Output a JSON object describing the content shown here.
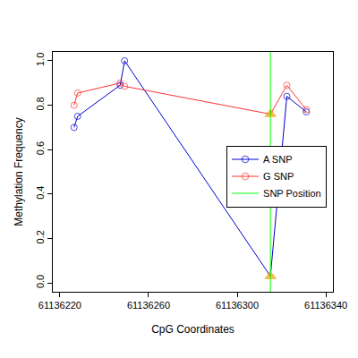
{
  "chart_data": {
    "type": "line",
    "x_label": "CpG Coordinates",
    "y_label": "Methylation Frequency",
    "xlim": [
      61136216.8,
      61136343.2
    ],
    "xticks": [
      61136220,
      61136260,
      61136300,
      61136340
    ],
    "ylim": [
      -0.04,
      1.04
    ],
    "yticks": [
      {
        "value": 0,
        "label": "0.0"
      },
      {
        "value": 0.2,
        "label": "0.2"
      },
      {
        "value": 0.4,
        "label": "0.4"
      },
      {
        "value": 0.6,
        "label": "0.6"
      },
      {
        "value": 0.8,
        "label": "0.8"
      },
      {
        "value": 1.0,
        "label": "1.0"
      }
    ],
    "grid": false,
    "legend": "right",
    "snp_position": 61136315,
    "snp_label": "SNP Position",
    "snp_color": "#00ff00",
    "series": [
      {
        "name": "A SNP",
        "color": "#0000cd",
        "marker": "circle",
        "x": [
          61136226.4,
          61136228,
          61136247.2,
          61136249.2,
          61136315,
          61136322.4,
          61136331.2
        ],
        "values": [
          0.7,
          0.75,
          0.89,
          1.0,
          0.03,
          0.84,
          0.77
        ]
      },
      {
        "name": "G SNP",
        "color": "#ff3333",
        "marker": "circle",
        "x": [
          61136226.4,
          61136228,
          61136247.2,
          61136249.2,
          61136315,
          61136322.4,
          61136331.2
        ],
        "values": [
          0.8,
          0.855,
          0.9,
          0.885,
          0.76,
          0.89,
          0.78
        ]
      }
    ]
  }
}
